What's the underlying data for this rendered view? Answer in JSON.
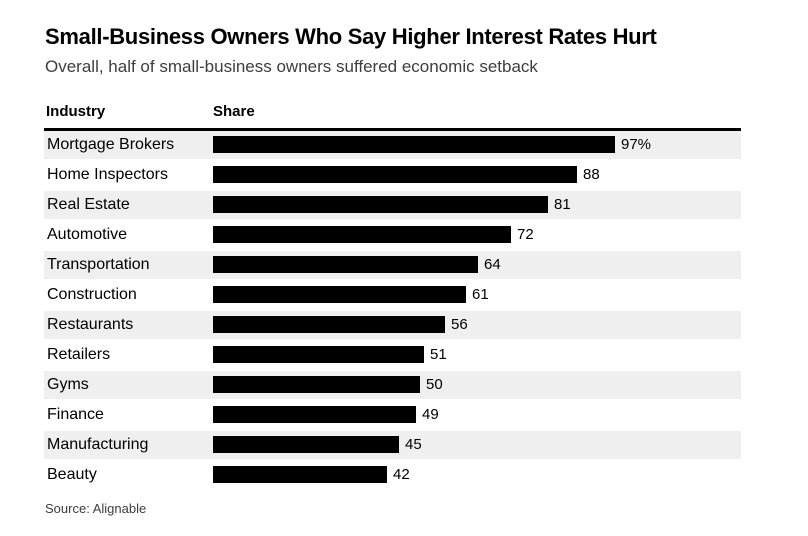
{
  "header": {
    "title": "Small-Business Owners Who Say Higher Interest Rates Hurt",
    "subtitle": "Overall, half of small-business owners suffered economic setback"
  },
  "table_header": {
    "industry_label": "Industry",
    "share_label": "Share"
  },
  "chart_data": {
    "type": "bar",
    "orientation": "horizontal",
    "title": "Small-Business Owners Who Say Higher Interest Rates Hurt",
    "subtitle": "Overall, half of small-business owners suffered economic setback",
    "xlabel": "Share",
    "ylabel": "Industry",
    "xlim": [
      0,
      100
    ],
    "grid": false,
    "legend": false,
    "bar_color": "#000000",
    "row_stripe_color": "#efefef",
    "categories": [
      "Mortgage Brokers",
      "Home Inspectors",
      "Real Estate",
      "Automotive",
      "Transportation",
      "Construction",
      "Restaurants",
      "Retailers",
      "Gyms",
      "Finance",
      "Manufacturing",
      "Beauty"
    ],
    "values": [
      97,
      88,
      81,
      72,
      64,
      61,
      56,
      51,
      50,
      49,
      45,
      42
    ],
    "value_labels": [
      "97%",
      "88",
      "81",
      "72",
      "64",
      "61",
      "56",
      "51",
      "50",
      "49",
      "45",
      "42"
    ]
  },
  "footer": {
    "source": "Source: Alignable"
  }
}
